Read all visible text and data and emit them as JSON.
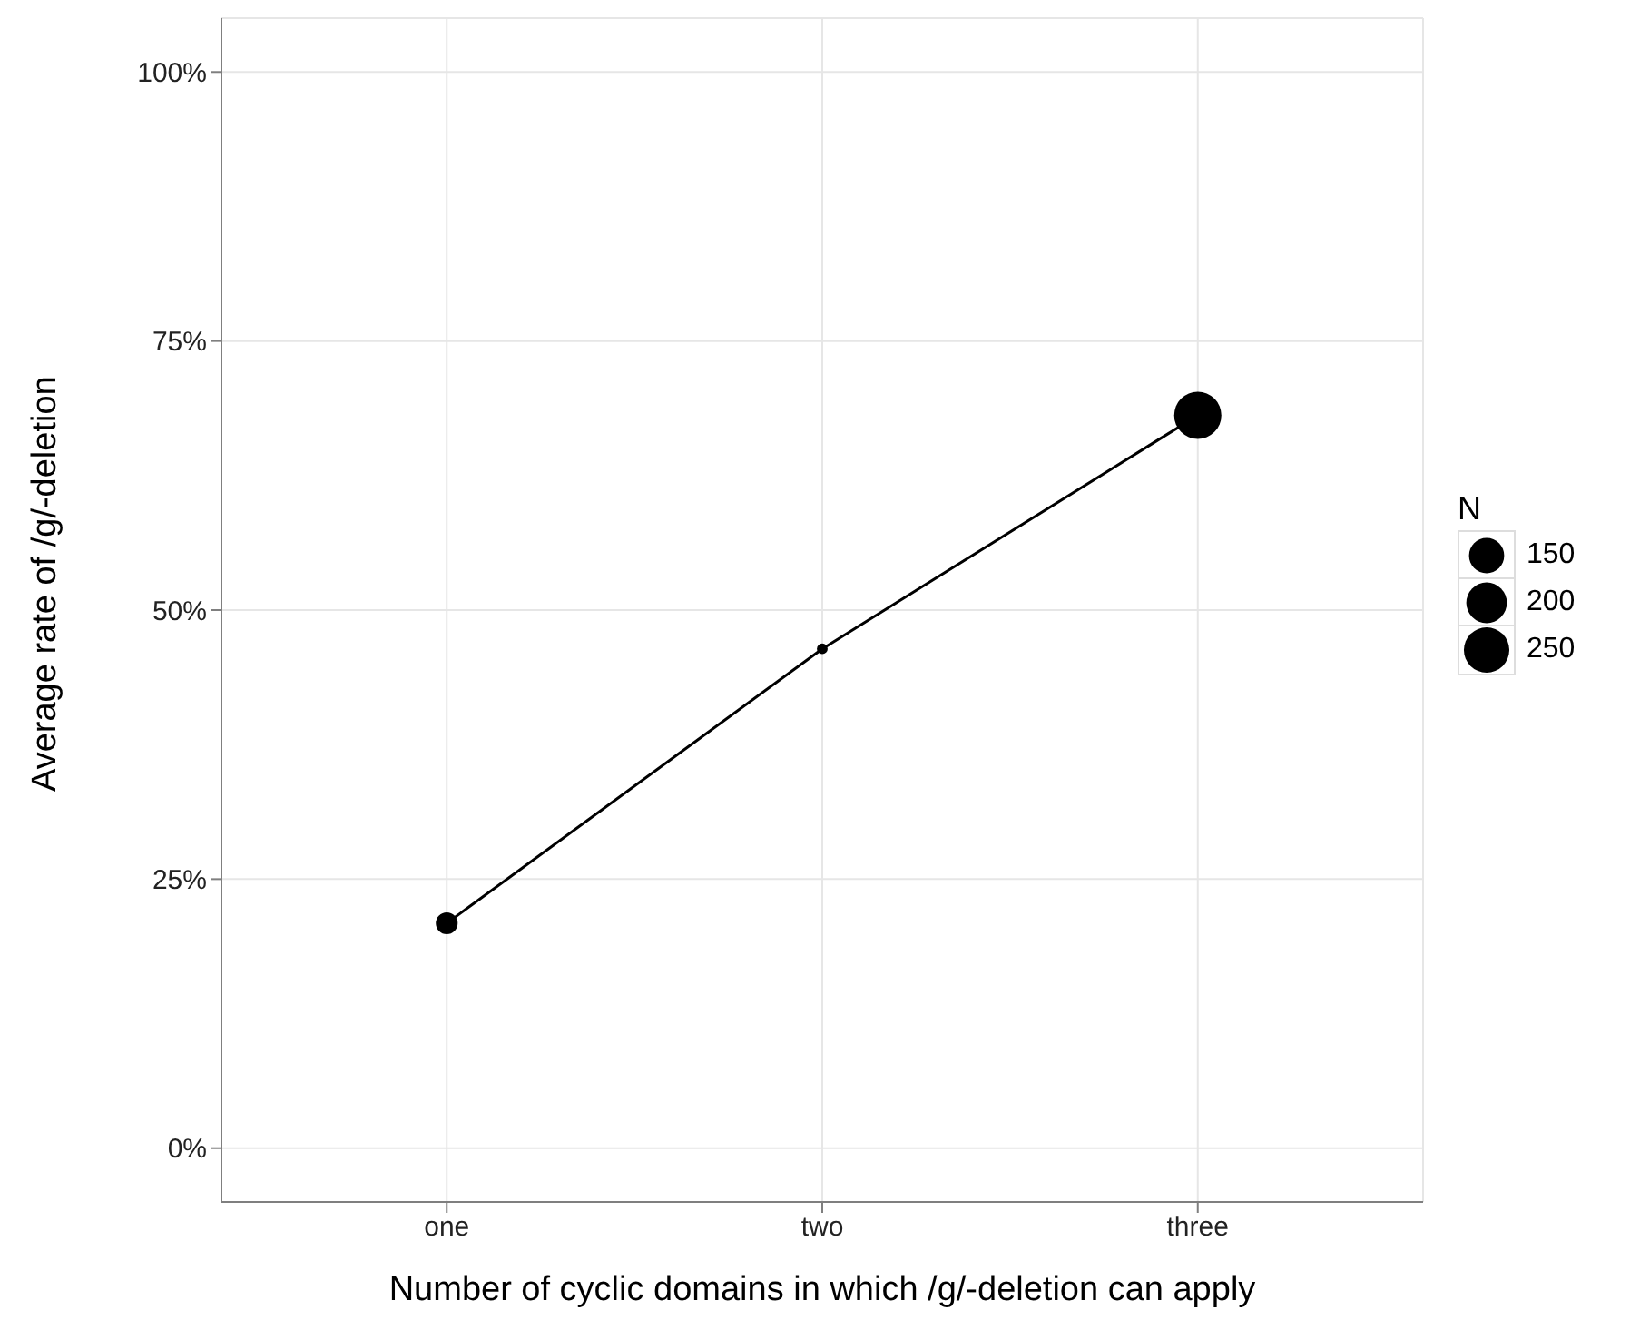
{
  "chart_data": {
    "type": "bubble",
    "xlabel": "Number of cyclic domains in which /g/-deletion can apply",
    "ylabel": "Average rate of /g/-deletion",
    "categories": [
      "one",
      "two",
      "three"
    ],
    "series": [
      {
        "type": "line",
        "color": "#000000",
        "values": [
          20.9,
          46.4,
          68.1
        ]
      },
      {
        "color": "#000000",
        "values": [
          20.9,
          46.4,
          68.1
        ],
        "sizes": [
          58,
          14,
          270
        ]
      }
    ],
    "size_legend": [
      150,
      200,
      250
    ],
    "legend_title": "N",
    "ylim": [
      -5,
      105
    ],
    "yticks": [
      {
        "value": 0,
        "label": "0%"
      },
      {
        "value": 25,
        "label": "25%"
      },
      {
        "value": 50,
        "label": "50%"
      },
      {
        "value": 75,
        "label": "75%"
      },
      {
        "value": 100,
        "label": "100%"
      }
    ],
    "grid": true,
    "line_style": "solid"
  }
}
